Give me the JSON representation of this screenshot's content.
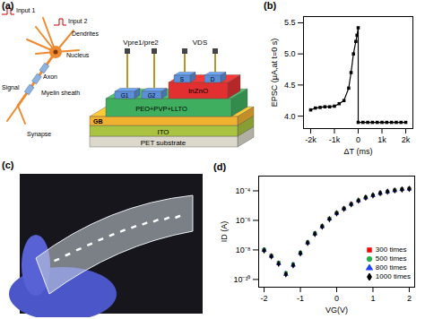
{
  "chart_data": [
    {
      "label": "(b)",
      "type": "line",
      "xlabel": "ΔT (ms)",
      "ylabel": "EPSC (μA,at t=0 s)",
      "x": [
        -2000,
        -1800,
        -1600,
        -1400,
        -1200,
        -1000,
        -800,
        -600,
        -400,
        -300,
        -200,
        -100,
        -50,
        0,
        0,
        200,
        400,
        600,
        800,
        1000,
        1200,
        1400,
        1600,
        1800,
        2000
      ],
      "values": [
        4.1,
        4.13,
        4.14,
        4.15,
        4.15,
        4.16,
        4.2,
        4.25,
        4.45,
        4.7,
        5.0,
        5.2,
        5.3,
        5.42,
        3.9,
        3.9,
        3.9,
        3.9,
        3.9,
        3.9,
        3.9,
        3.9,
        3.9,
        3.9,
        3.9
      ],
      "color": "#000000",
      "marker": "square",
      "xlim": [
        -2300,
        2300
      ],
      "xticks": [
        {
          "value": -2000,
          "label": "-2k"
        },
        {
          "value": -1000,
          "label": "-1k"
        },
        0,
        {
          "value": 1000,
          "label": "1k"
        },
        {
          "value": 2000,
          "label": "2k"
        }
      ],
      "ylim": [
        3.8,
        5.6
      ],
      "yticks": [
        {
          "value": 4,
          "label": "4.0"
        },
        4.5,
        {
          "value": 5,
          "label": "5.0"
        },
        5.5
      ]
    },
    {
      "label": "(d)",
      "type": "scatter",
      "xlabel": "VG(V)",
      "ylabel": "ID (A)",
      "log": "y",
      "legend": "bottom-right",
      "x": [
        -2,
        -1.8,
        -1.6,
        -1.4,
        -1.2,
        -1,
        -0.8,
        -0.6,
        -0.4,
        -0.2,
        0,
        0.2,
        0.4,
        0.6,
        0.8,
        1,
        1.2,
        1.4,
        1.6,
        1.8,
        2
      ],
      "series": [
        {
          "name": "300 times",
          "color": "#ff0000",
          "marker": "square",
          "values": [
            1e-08,
            4e-09,
            1.3e-09,
            2.5e-10,
            1e-09,
            6.3e-09,
            3.2e-08,
            1.3e-07,
            4e-07,
            1.3e-06,
            3.2e-06,
            6.3e-06,
            1.3e-05,
            2.2e-05,
            3.5e-05,
            5e-05,
            7e-05,
            8.9e-05,
            0.00011,
            0.000126,
            0.00014
          ]
        },
        {
          "name": "500 times",
          "color": "#22b14c",
          "marker": "circle",
          "values": [
            1.1e-08,
            4.2e-09,
            1.4e-09,
            2.8e-10,
            1.1e-09,
            6.8e-09,
            3.4e-08,
            1.4e-07,
            4.2e-07,
            1.35e-06,
            3.3e-06,
            6.5e-06,
            1.3e-05,
            2.3e-05,
            3.6e-05,
            5.1e-05,
            7.1e-05,
            9e-05,
            0.00011,
            0.000128,
            0.000142
          ]
        },
        {
          "name": "800 times",
          "color": "#1f3fff",
          "marker": "triangle",
          "values": [
            9.5e-09,
            3.8e-09,
            1.2e-09,
            2.3e-10,
            9.5e-10,
            6e-09,
            3.1e-08,
            1.25e-07,
            3.9e-07,
            1.25e-06,
            3.1e-06,
            6.2e-06,
            1.25e-05,
            2.2e-05,
            3.5e-05,
            5e-05,
            7e-05,
            8.8e-05,
            0.000108,
            0.000125,
            0.000138
          ]
        },
        {
          "name": "1000 times",
          "color": "#000000",
          "marker": "diamond",
          "values": [
            9e-09,
            3.6e-09,
            1.15e-09,
            2.2e-10,
            9e-10,
            5.8e-09,
            3e-08,
            1.2e-07,
            3.8e-07,
            1.2e-06,
            3e-06,
            6e-06,
            1.22e-05,
            2.15e-05,
            3.45e-05,
            4.9e-05,
            6.9e-05,
            8.7e-05,
            0.000106,
            0.000123,
            0.000136
          ]
        }
      ],
      "xlim": [
        -2.15,
        2.15
      ],
      "xticks": [
        -2,
        -1,
        0,
        1,
        2
      ],
      "ylim": [
        3e-11,
        0.001
      ],
      "yticks": [
        {
          "value": 1e-10,
          "label": "10⁻¹⁰"
        },
        {
          "value": 1e-08,
          "label": "10⁻⁸"
        },
        {
          "value": 1e-06,
          "label": "10⁻⁶"
        },
        {
          "value": 0.0001,
          "label": "10⁻⁴"
        }
      ]
    }
  ],
  "diagram": {
    "label": "(a)",
    "texts": {
      "input1": "Input 1",
      "input2": "Input 2",
      "dendrites": "Dendrites",
      "nucleus": "Nucleus",
      "axon": "Axon",
      "myelin": "Myelin sheath",
      "signal": "Signal",
      "synapse": "Synapse",
      "vpre": "Vpre1/pre2",
      "vds": "VDS",
      "s": "S",
      "d": "D",
      "g1": "G1",
      "g2": "G2",
      "channel": "InZnO",
      "electrolyte": "PEO+PVP+LLTO",
      "gate": "GB",
      "ito": "ITO",
      "substrate": "PET substrate"
    }
  },
  "photo": {
    "label": "(c)"
  }
}
